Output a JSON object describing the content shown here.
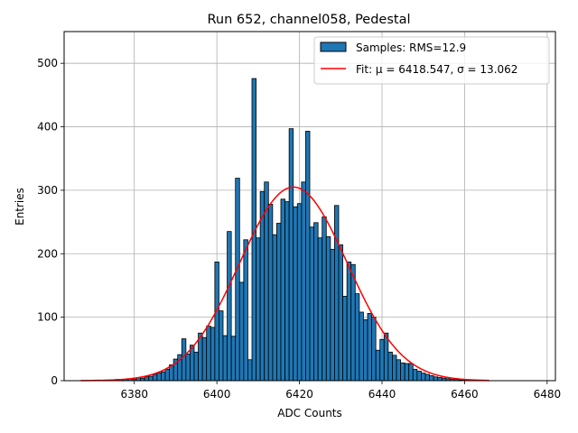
{
  "chart_data": {
    "type": "bar",
    "title": "Run 652, channel058, Pedestal",
    "xlabel": "ADC Counts",
    "ylabel": "Entries",
    "xlim": [
      6363,
      6482
    ],
    "ylim": [
      0,
      550
    ],
    "xticks": [
      6380,
      6400,
      6420,
      6440,
      6460,
      6480
    ],
    "yticks": [
      0,
      100,
      200,
      300,
      400,
      500
    ],
    "grid": true,
    "legend": {
      "placement": "top-right",
      "hist_label": "Samples: RMS=12.9",
      "fit_label": "Fit: μ = 6418.547, σ = 13.062"
    },
    "bin_width": 1,
    "histogram": {
      "name": "Samples: RMS=12.9",
      "color": "#1f77b4",
      "edgecolor": "#000000",
      "bin_centers": [
        6371,
        6373,
        6374,
        6375,
        6376,
        6377,
        6378,
        6379,
        6380,
        6381,
        6382,
        6383,
        6384,
        6385,
        6386,
        6387,
        6388,
        6389,
        6390,
        6391,
        6392,
        6393,
        6394,
        6395,
        6396,
        6397,
        6398,
        6399,
        6400,
        6401,
        6402,
        6403,
        6404,
        6405,
        6406,
        6407,
        6408,
        6409,
        6410,
        6411,
        6412,
        6413,
        6414,
        6415,
        6416,
        6417,
        6418,
        6419,
        6420,
        6421,
        6422,
        6423,
        6424,
        6425,
        6426,
        6427,
        6428,
        6429,
        6430,
        6431,
        6432,
        6433,
        6434,
        6435,
        6436,
        6437,
        6438,
        6439,
        6440,
        6441,
        6442,
        6443,
        6444,
        6445,
        6446,
        6447,
        6448,
        6449,
        6450,
        6451,
        6452,
        6453,
        6454,
        6455,
        6456,
        6457,
        6458,
        6459,
        6460,
        6461,
        6462
      ],
      "counts": [
        1,
        1,
        1,
        1,
        2,
        1,
        2,
        3,
        2,
        5,
        4,
        6,
        7,
        10,
        12,
        14,
        18,
        25,
        34,
        41,
        66,
        42,
        56,
        45,
        75,
        68,
        86,
        84,
        187,
        110,
        71,
        235,
        70,
        319,
        155,
        222,
        33,
        476,
        225,
        298,
        313,
        278,
        230,
        248,
        286,
        282,
        397,
        274,
        279,
        313,
        393,
        242,
        249,
        225,
        258,
        227,
        207,
        276,
        214,
        133,
        187,
        183,
        137,
        108,
        96,
        106,
        100,
        48,
        65,
        75,
        45,
        40,
        33,
        28,
        27,
        27,
        18,
        15,
        12,
        10,
        8,
        6,
        5,
        4,
        3,
        2,
        2,
        1,
        1,
        1,
        1
      ]
    },
    "fit": {
      "name": "Fit: μ = 6418.547, σ = 13.062",
      "color": "#ff0000",
      "mu": 6418.547,
      "sigma": 13.062,
      "amplitude": 305,
      "x_range": [
        6367,
        6466
      ]
    }
  }
}
